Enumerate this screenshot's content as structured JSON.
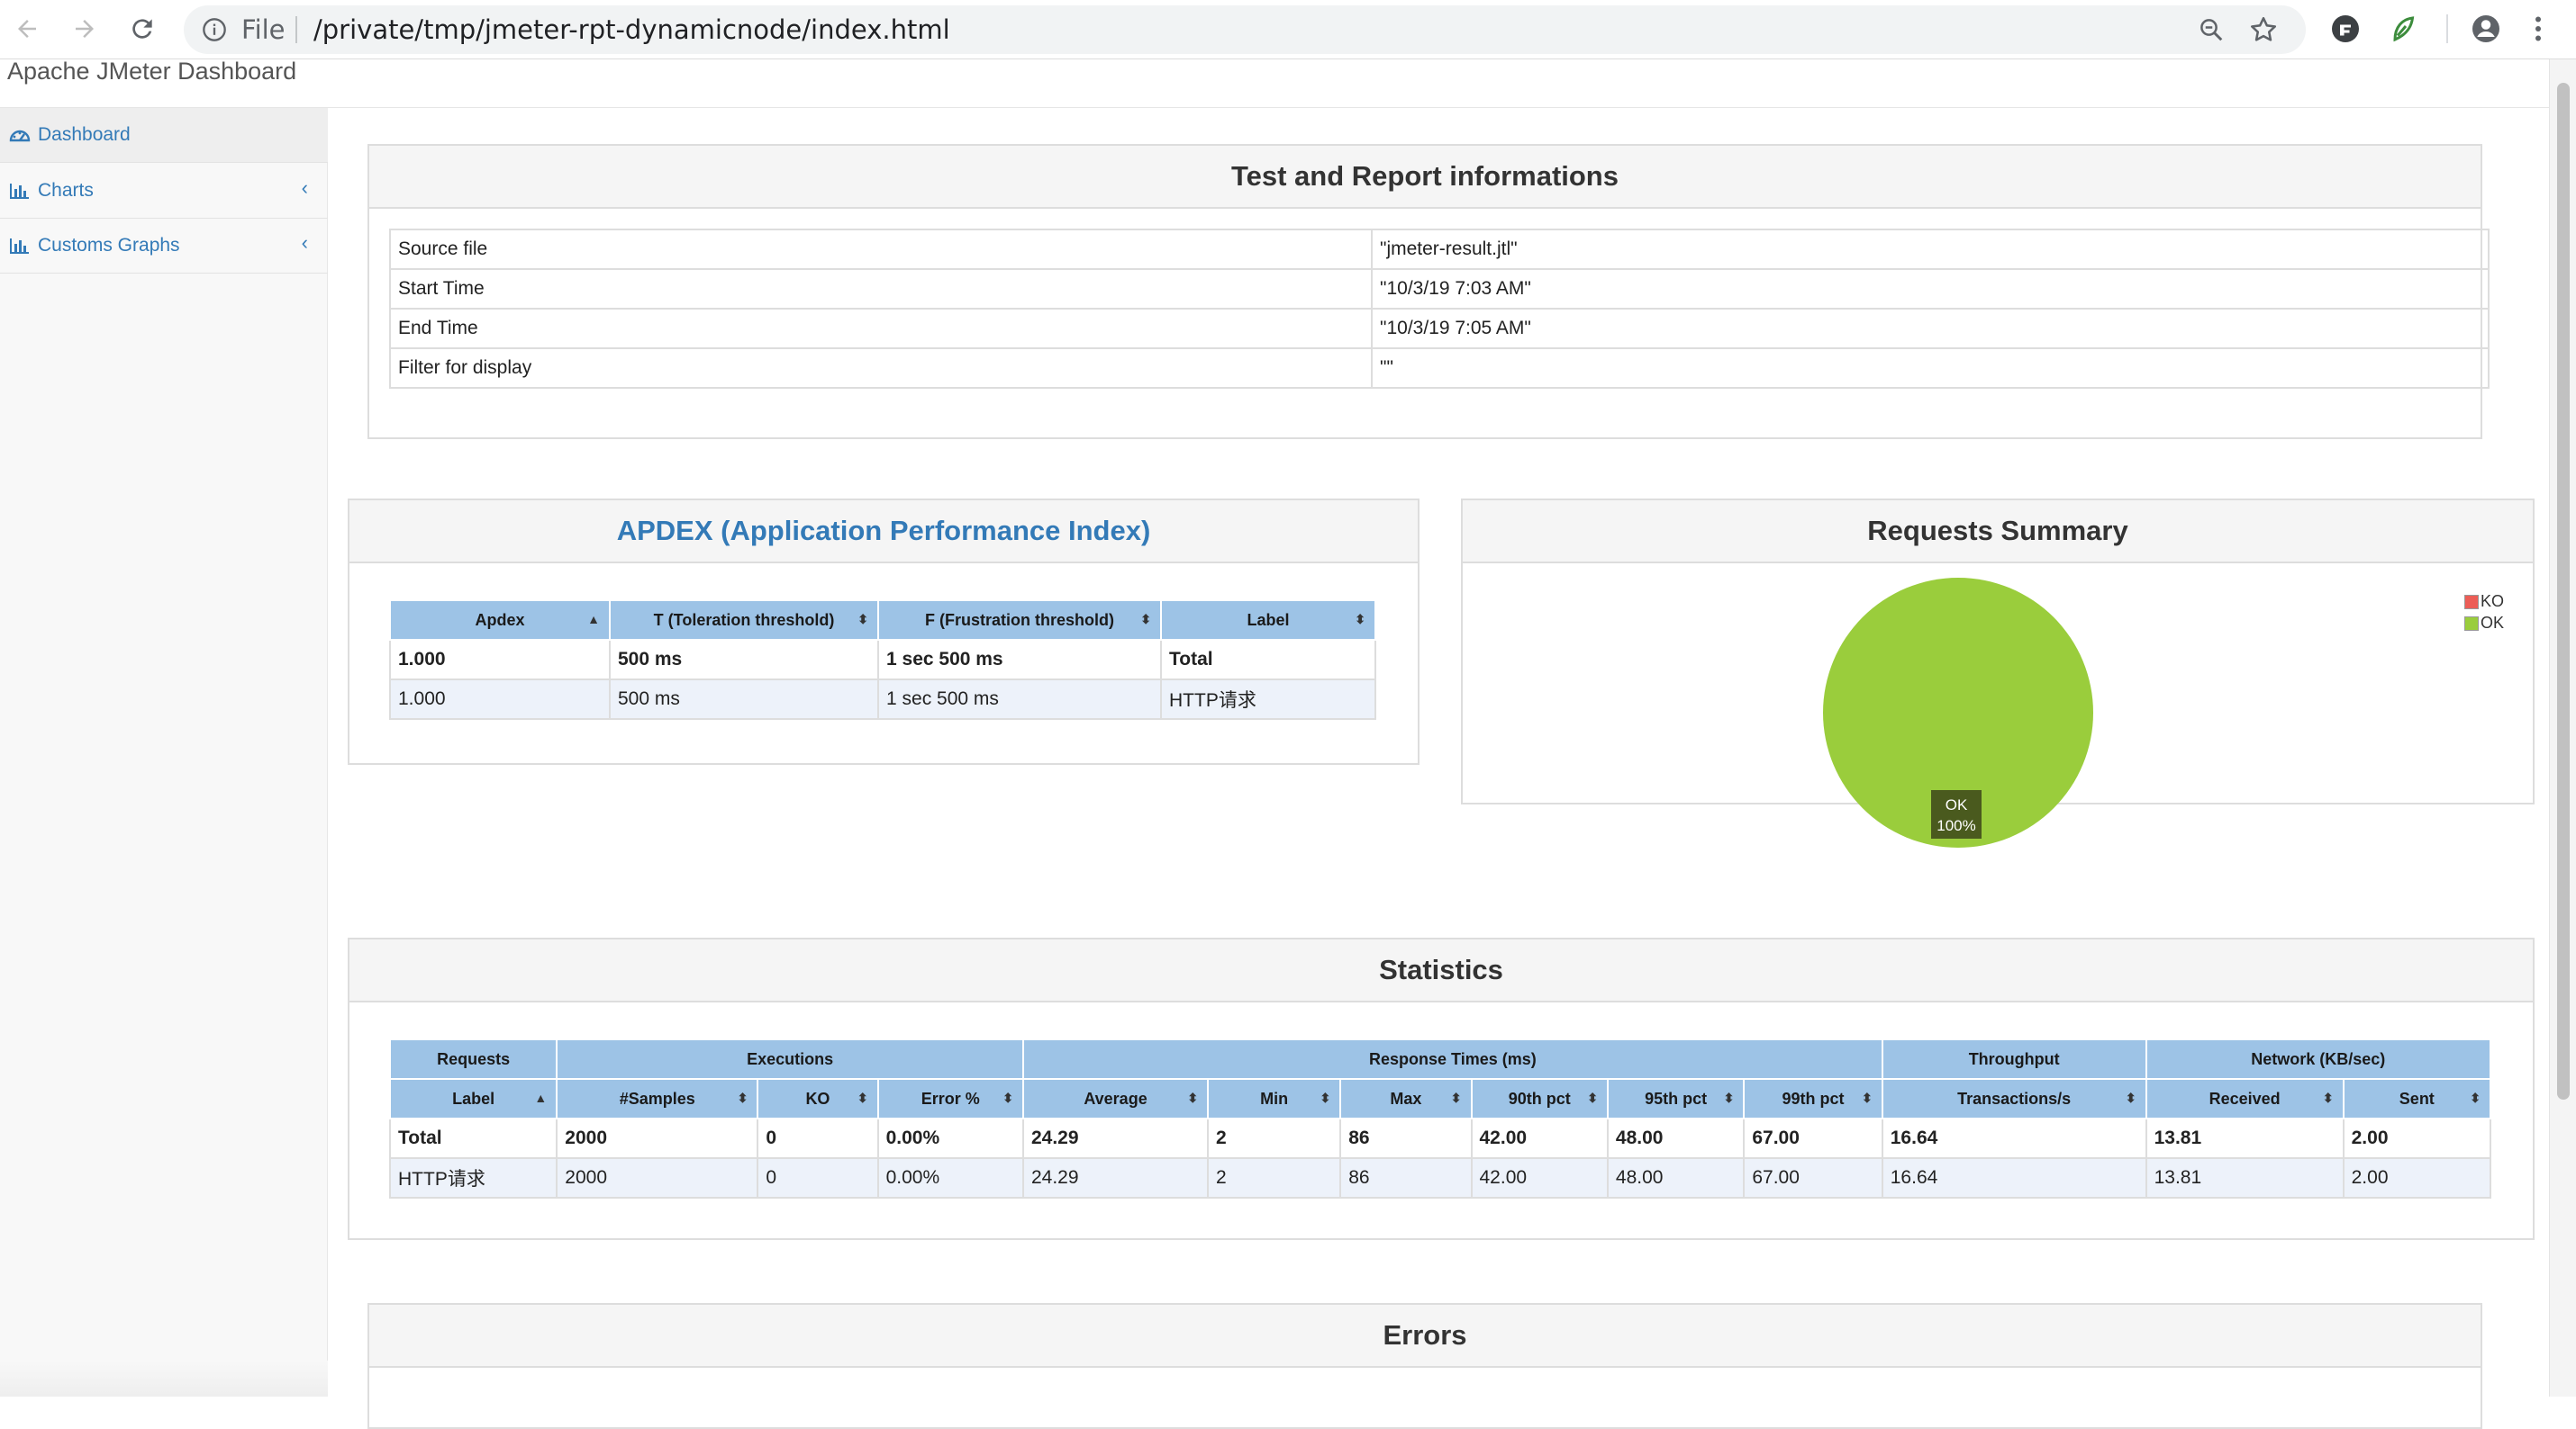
{
  "browser": {
    "scheme_label": "File",
    "url": "/private/tmp/jmeter-rpt-dynamicnode/index.html"
  },
  "app": {
    "brand": "Apache JMeter Dashboard"
  },
  "sidebar": {
    "items": [
      {
        "label": "Dashboard",
        "icon": "dashboard-icon"
      },
      {
        "label": "Charts",
        "icon": "bar-chart-icon"
      },
      {
        "label": "Customs Graphs",
        "icon": "bar-chart-icon"
      }
    ]
  },
  "test_info": {
    "title": "Test and Report informations",
    "rows": [
      {
        "key": "Source file",
        "value": "\"jmeter-result.jtl\""
      },
      {
        "key": "Start Time",
        "value": "\"10/3/19 7:03 AM\""
      },
      {
        "key": "End Time",
        "value": "\"10/3/19 7:05 AM\""
      },
      {
        "key": "Filter for display",
        "value": "\"\""
      }
    ]
  },
  "apdex": {
    "title": "APDEX (Application Performance Index)",
    "headers": [
      "Apdex",
      "T (Toleration threshold)",
      "F (Frustration threshold)",
      "Label"
    ],
    "rows": [
      [
        "1.000",
        "500 ms",
        "1 sec 500 ms",
        "Total"
      ],
      [
        "1.000",
        "500 ms",
        "1 sec 500 ms",
        "HTTP请求"
      ]
    ]
  },
  "summary": {
    "title": "Requests Summary",
    "legend": [
      {
        "label": "KO",
        "color": "#ec5d56"
      },
      {
        "label": "OK",
        "color": "#9acd3c"
      }
    ]
  },
  "chart_data": {
    "type": "pie",
    "title": "Requests Summary",
    "categories": [
      "KO",
      "OK"
    ],
    "values": [
      0,
      100
    ],
    "slice_labels": [
      {
        "name": "OK",
        "percent": "100%"
      }
    ],
    "colors": [
      "#ec5d56",
      "#9acd3c"
    ],
    "legend_position": "top-right"
  },
  "statistics": {
    "title": "Statistics",
    "groups": [
      "Requests",
      "Executions",
      "Response Times (ms)",
      "Throughput",
      "Network (KB/sec)"
    ],
    "headers": [
      "Label",
      "#Samples",
      "KO",
      "Error %",
      "Average",
      "Min",
      "Max",
      "90th pct",
      "95th pct",
      "99th pct",
      "Transactions/s",
      "Received",
      "Sent"
    ],
    "rows": [
      [
        "Total",
        "2000",
        "0",
        "0.00%",
        "24.29",
        "2",
        "86",
        "42.00",
        "48.00",
        "67.00",
        "16.64",
        "13.81",
        "2.00"
      ],
      [
        "HTTP请求",
        "2000",
        "0",
        "0.00%",
        "24.29",
        "2",
        "86",
        "42.00",
        "48.00",
        "67.00",
        "16.64",
        "13.81",
        "2.00"
      ]
    ]
  },
  "errors": {
    "title": "Errors"
  }
}
